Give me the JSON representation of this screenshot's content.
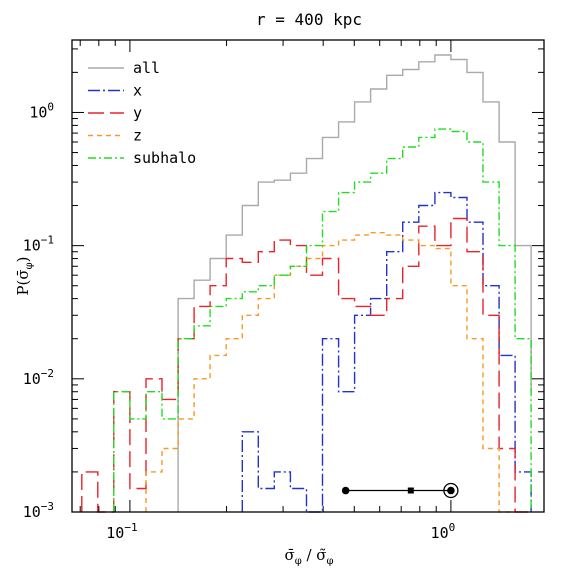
{
  "chart_data": {
    "type": "line",
    "drawstyle": "steps",
    "title": "r = 400 kpc",
    "xlabel": "σ̄φ / σ̃φ",
    "ylabel": "P(σ̄φ)",
    "xscale": "log",
    "yscale": "log",
    "xlim": [
      0.066,
      1.95
    ],
    "ylim": [
      0.001,
      3.5
    ],
    "x_ticks": [
      {
        "value": 0.1,
        "base": "10",
        "exp": "−1"
      },
      {
        "value": 1.0,
        "base": "10",
        "exp": "0"
      }
    ],
    "y_ticks": [
      {
        "value": 0.001,
        "base": "10",
        "exp": "−3"
      },
      {
        "value": 0.01,
        "base": "10",
        "exp": "−2"
      },
      {
        "value": 0.1,
        "base": "10",
        "exp": "−1"
      },
      {
        "value": 1.0,
        "base": "10",
        "exp": "0"
      }
    ],
    "legend_position": "top-left",
    "bin_edges": [
      0.0708,
      0.0794,
      0.0891,
      0.1,
      0.1122,
      0.1259,
      0.1413,
      0.1585,
      0.1778,
      0.1995,
      0.2239,
      0.2512,
      0.2818,
      0.3162,
      0.3548,
      0.3981,
      0.4467,
      0.5012,
      0.5623,
      0.631,
      0.7079,
      0.7943,
      0.8913,
      1.0,
      1.122,
      1.259,
      1.413,
      1.585,
      1.778
    ],
    "series": [
      {
        "name": "all",
        "color": "#a9a9a9",
        "dash": "",
        "values": [
          null,
          null,
          null,
          null,
          null,
          null,
          0.04,
          0.055,
          0.08,
          0.12,
          0.2,
          0.3,
          0.31,
          0.35,
          0.45,
          0.65,
          0.85,
          1.2,
          1.5,
          1.9,
          2.1,
          2.4,
          2.7,
          2.5,
          2.0,
          1.2,
          0.6,
          0.1,
          0.008
        ]
      },
      {
        "name": "x",
        "color": "#2233cc",
        "dash": "12,3,2,3",
        "values": [
          null,
          null,
          null,
          null,
          null,
          null,
          null,
          null,
          null,
          null,
          0.004,
          0.0015,
          0.002,
          0.0015,
          0.001,
          0.02,
          0.008,
          0.03,
          0.04,
          0.09,
          0.15,
          0.2,
          0.25,
          0.23,
          0.15,
          0.05,
          0.015,
          0.002,
          null
        ]
      },
      {
        "name": "y",
        "color": "#e8232a",
        "dash": "16,6",
        "values": [
          0.002,
          0.001,
          0.008,
          0.0015,
          0.01,
          0.007,
          0.02,
          0.035,
          0.05,
          0.08,
          0.075,
          0.09,
          0.11,
          0.1,
          0.06,
          0.08,
          0.04,
          0.035,
          0.03,
          0.04,
          0.07,
          0.14,
          0.1,
          0.16,
          0.09,
          0.03,
          0.003,
          null,
          null
        ]
      },
      {
        "name": "z",
        "color": "#f59a23",
        "dash": "5,4",
        "values": [
          null,
          null,
          null,
          null,
          0.002,
          0.003,
          0.005,
          0.01,
          0.015,
          0.02,
          0.03,
          0.04,
          0.06,
          0.07,
          0.08,
          0.1,
          0.11,
          0.12,
          0.125,
          0.12,
          0.11,
          0.1,
          0.095,
          0.05,
          0.02,
          0.003,
          null,
          null,
          null
        ]
      },
      {
        "name": "subhalo",
        "color": "#22dd22",
        "dash": "8,3,2,3",
        "values": [
          null,
          null,
          0.008,
          0.005,
          0.008,
          0.005,
          0.02,
          0.025,
          0.035,
          0.04,
          0.045,
          0.05,
          0.06,
          0.07,
          0.1,
          0.18,
          0.25,
          0.3,
          0.35,
          0.45,
          0.55,
          0.65,
          0.75,
          0.72,
          0.6,
          0.3,
          0.1,
          0.02,
          null
        ]
      }
    ],
    "annotation": {
      "y": 0.00145,
      "x_start": 0.47,
      "x_square": 0.75,
      "x_circle": 1.0
    }
  }
}
